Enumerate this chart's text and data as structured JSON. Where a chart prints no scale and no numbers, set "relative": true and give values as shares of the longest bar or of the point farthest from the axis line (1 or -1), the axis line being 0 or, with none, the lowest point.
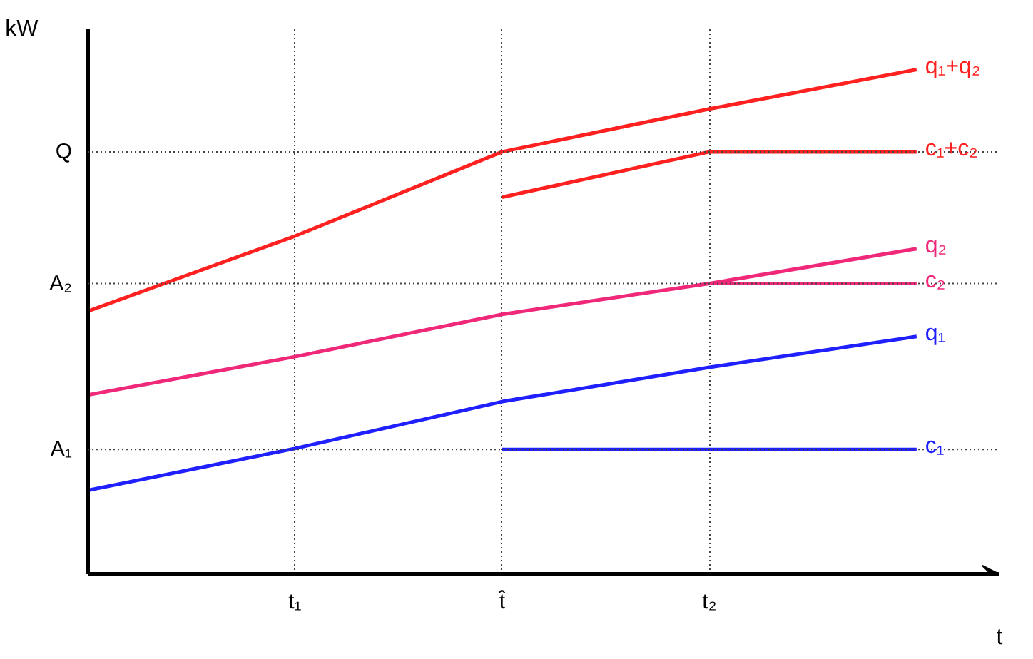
{
  "chart_data": {
    "type": "line",
    "relative": true,
    "xlabel": "t",
    "ylabel": "kW",
    "categories": [
      null,
      "t₁",
      "t̂",
      "t₂",
      null
    ],
    "ref_lines": [
      {
        "axis": "y",
        "value": 0.247,
        "label": "A₁",
        "line_style": "dotted"
      },
      {
        "axis": "y",
        "value": 0.576,
        "label": "A₂",
        "line_style": "dotted"
      },
      {
        "axis": "y",
        "value": 0.837,
        "label": "Q",
        "line_style": "dotted"
      }
    ],
    "grid": "x",
    "legend": false,
    "marker": "none",
    "line_style": "solid",
    "series": [
      {
        "name": "q₁+q₂",
        "color": "#ff2020",
        "values": [
          0.521,
          0.67,
          0.837,
          0.922,
          1.0
        ]
      },
      {
        "name": "c₁+c₂",
        "color": "#ff2020",
        "values": [
          null,
          null,
          0.747,
          0.837,
          0.837
        ]
      },
      {
        "name": "q₂",
        "color": "#f0287a",
        "values": [
          0.355,
          0.431,
          0.515,
          0.576,
          0.645
        ]
      },
      {
        "name": "c₂",
        "color": "#f0287a",
        "values": [
          null,
          null,
          null,
          0.576,
          0.576
        ]
      },
      {
        "name": "q₁",
        "color": "#2020ff",
        "values": [
          0.166,
          0.249,
          0.342,
          0.41,
          0.471
        ]
      },
      {
        "name": "c₁",
        "color": "#2020ff",
        "values": [
          null,
          null,
          0.247,
          0.247,
          0.247
        ]
      }
    ]
  }
}
